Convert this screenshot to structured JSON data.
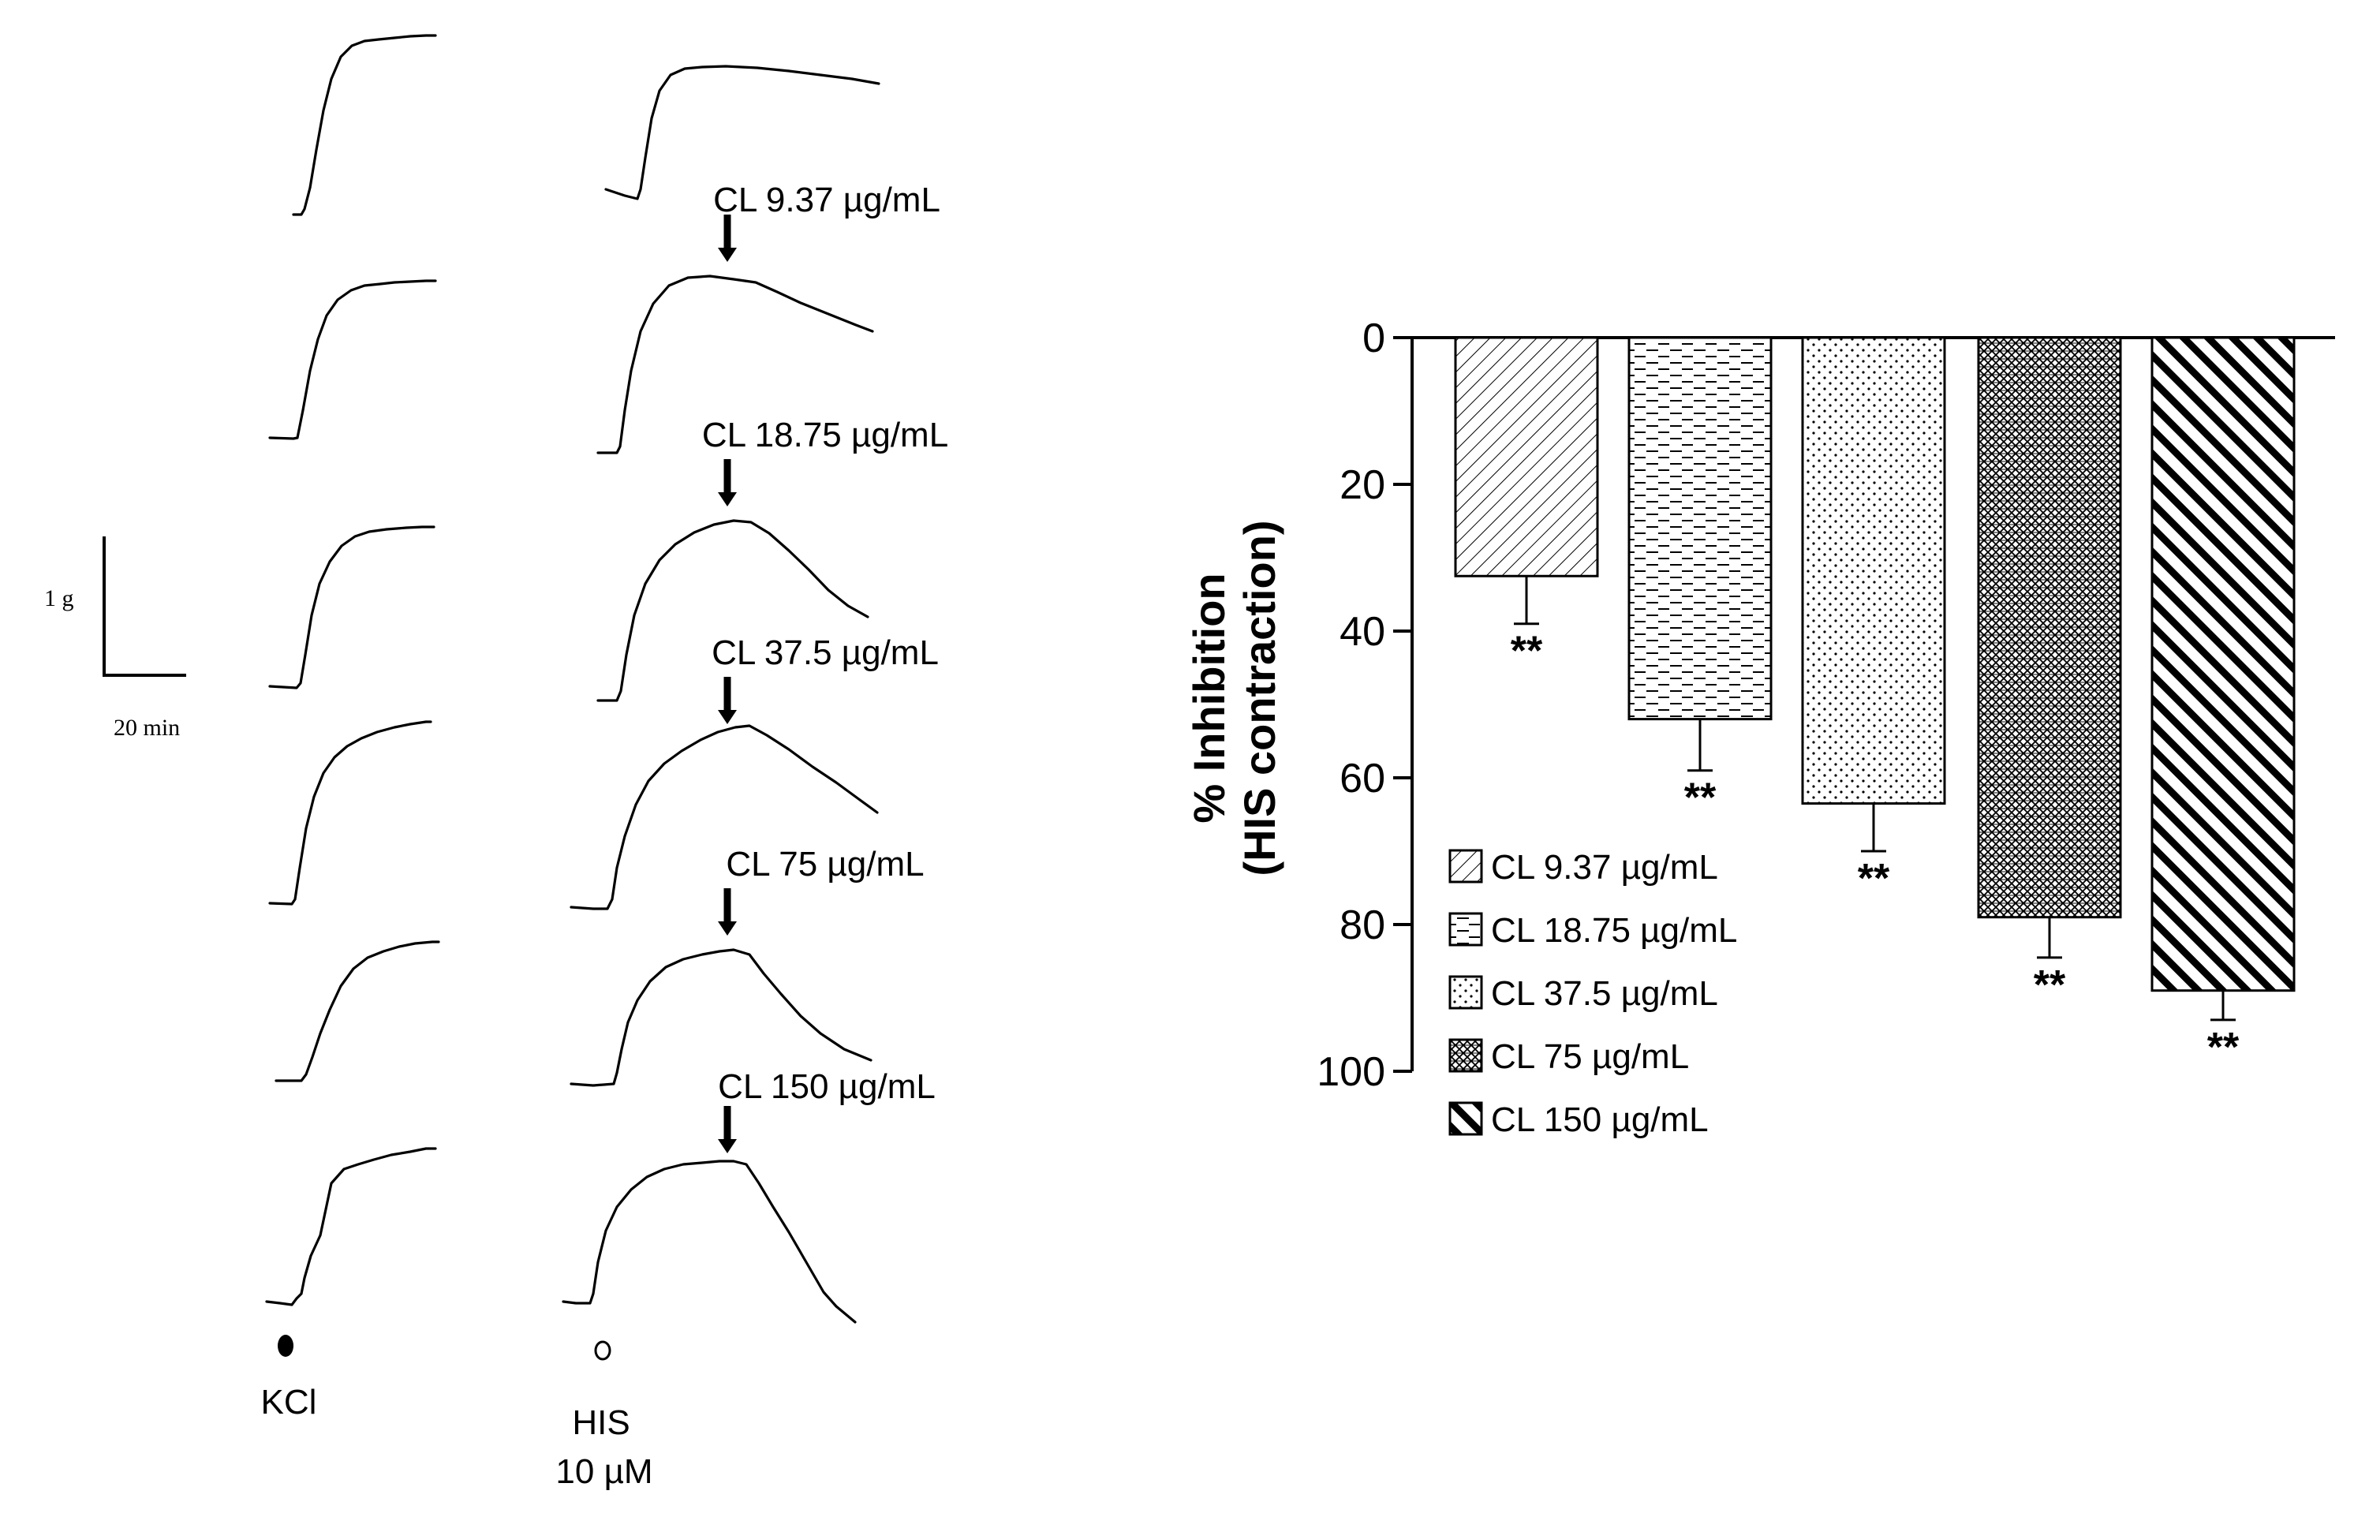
{
  "traces": {
    "concentration_labels": [
      "CL 9.37 µg/mL",
      "CL 18.75 µg/mL",
      "CL 37.5 µg/mL",
      "CL 75 µg/mL",
      "CL 150 µg/mL"
    ],
    "kcl_label": "KCl",
    "his_label_line1": "HIS",
    "his_label_line2": "10 µM",
    "scale_y_label": "1 g",
    "scale_x_label": "20 min"
  },
  "chart_data": {
    "type": "bar",
    "title": "",
    "xlabel": "",
    "ylabel_line1": "% Inhibition",
    "ylabel_line2": "(HIS contraction)",
    "ylim": [
      0,
      100
    ],
    "y_inverted": true,
    "y_ticks": [
      0,
      20,
      40,
      60,
      80,
      100
    ],
    "categories": [
      "CL 9.37 µg/mL",
      "CL 18.75 µg/mL",
      "CL 37.5 µg/mL",
      "CL 75 µg/mL",
      "CL 150 µg/mL"
    ],
    "values": [
      32.5,
      52,
      63.5,
      79,
      89
    ],
    "errors": [
      6.5,
      7,
      6.5,
      5.5,
      4
    ],
    "significance": [
      "**",
      "**",
      "**",
      "**",
      "**"
    ],
    "legend_position": "bottom-left",
    "patterns": [
      "diag-back",
      "dashes",
      "dots",
      "cross-hatch",
      "diag-bold"
    ]
  }
}
